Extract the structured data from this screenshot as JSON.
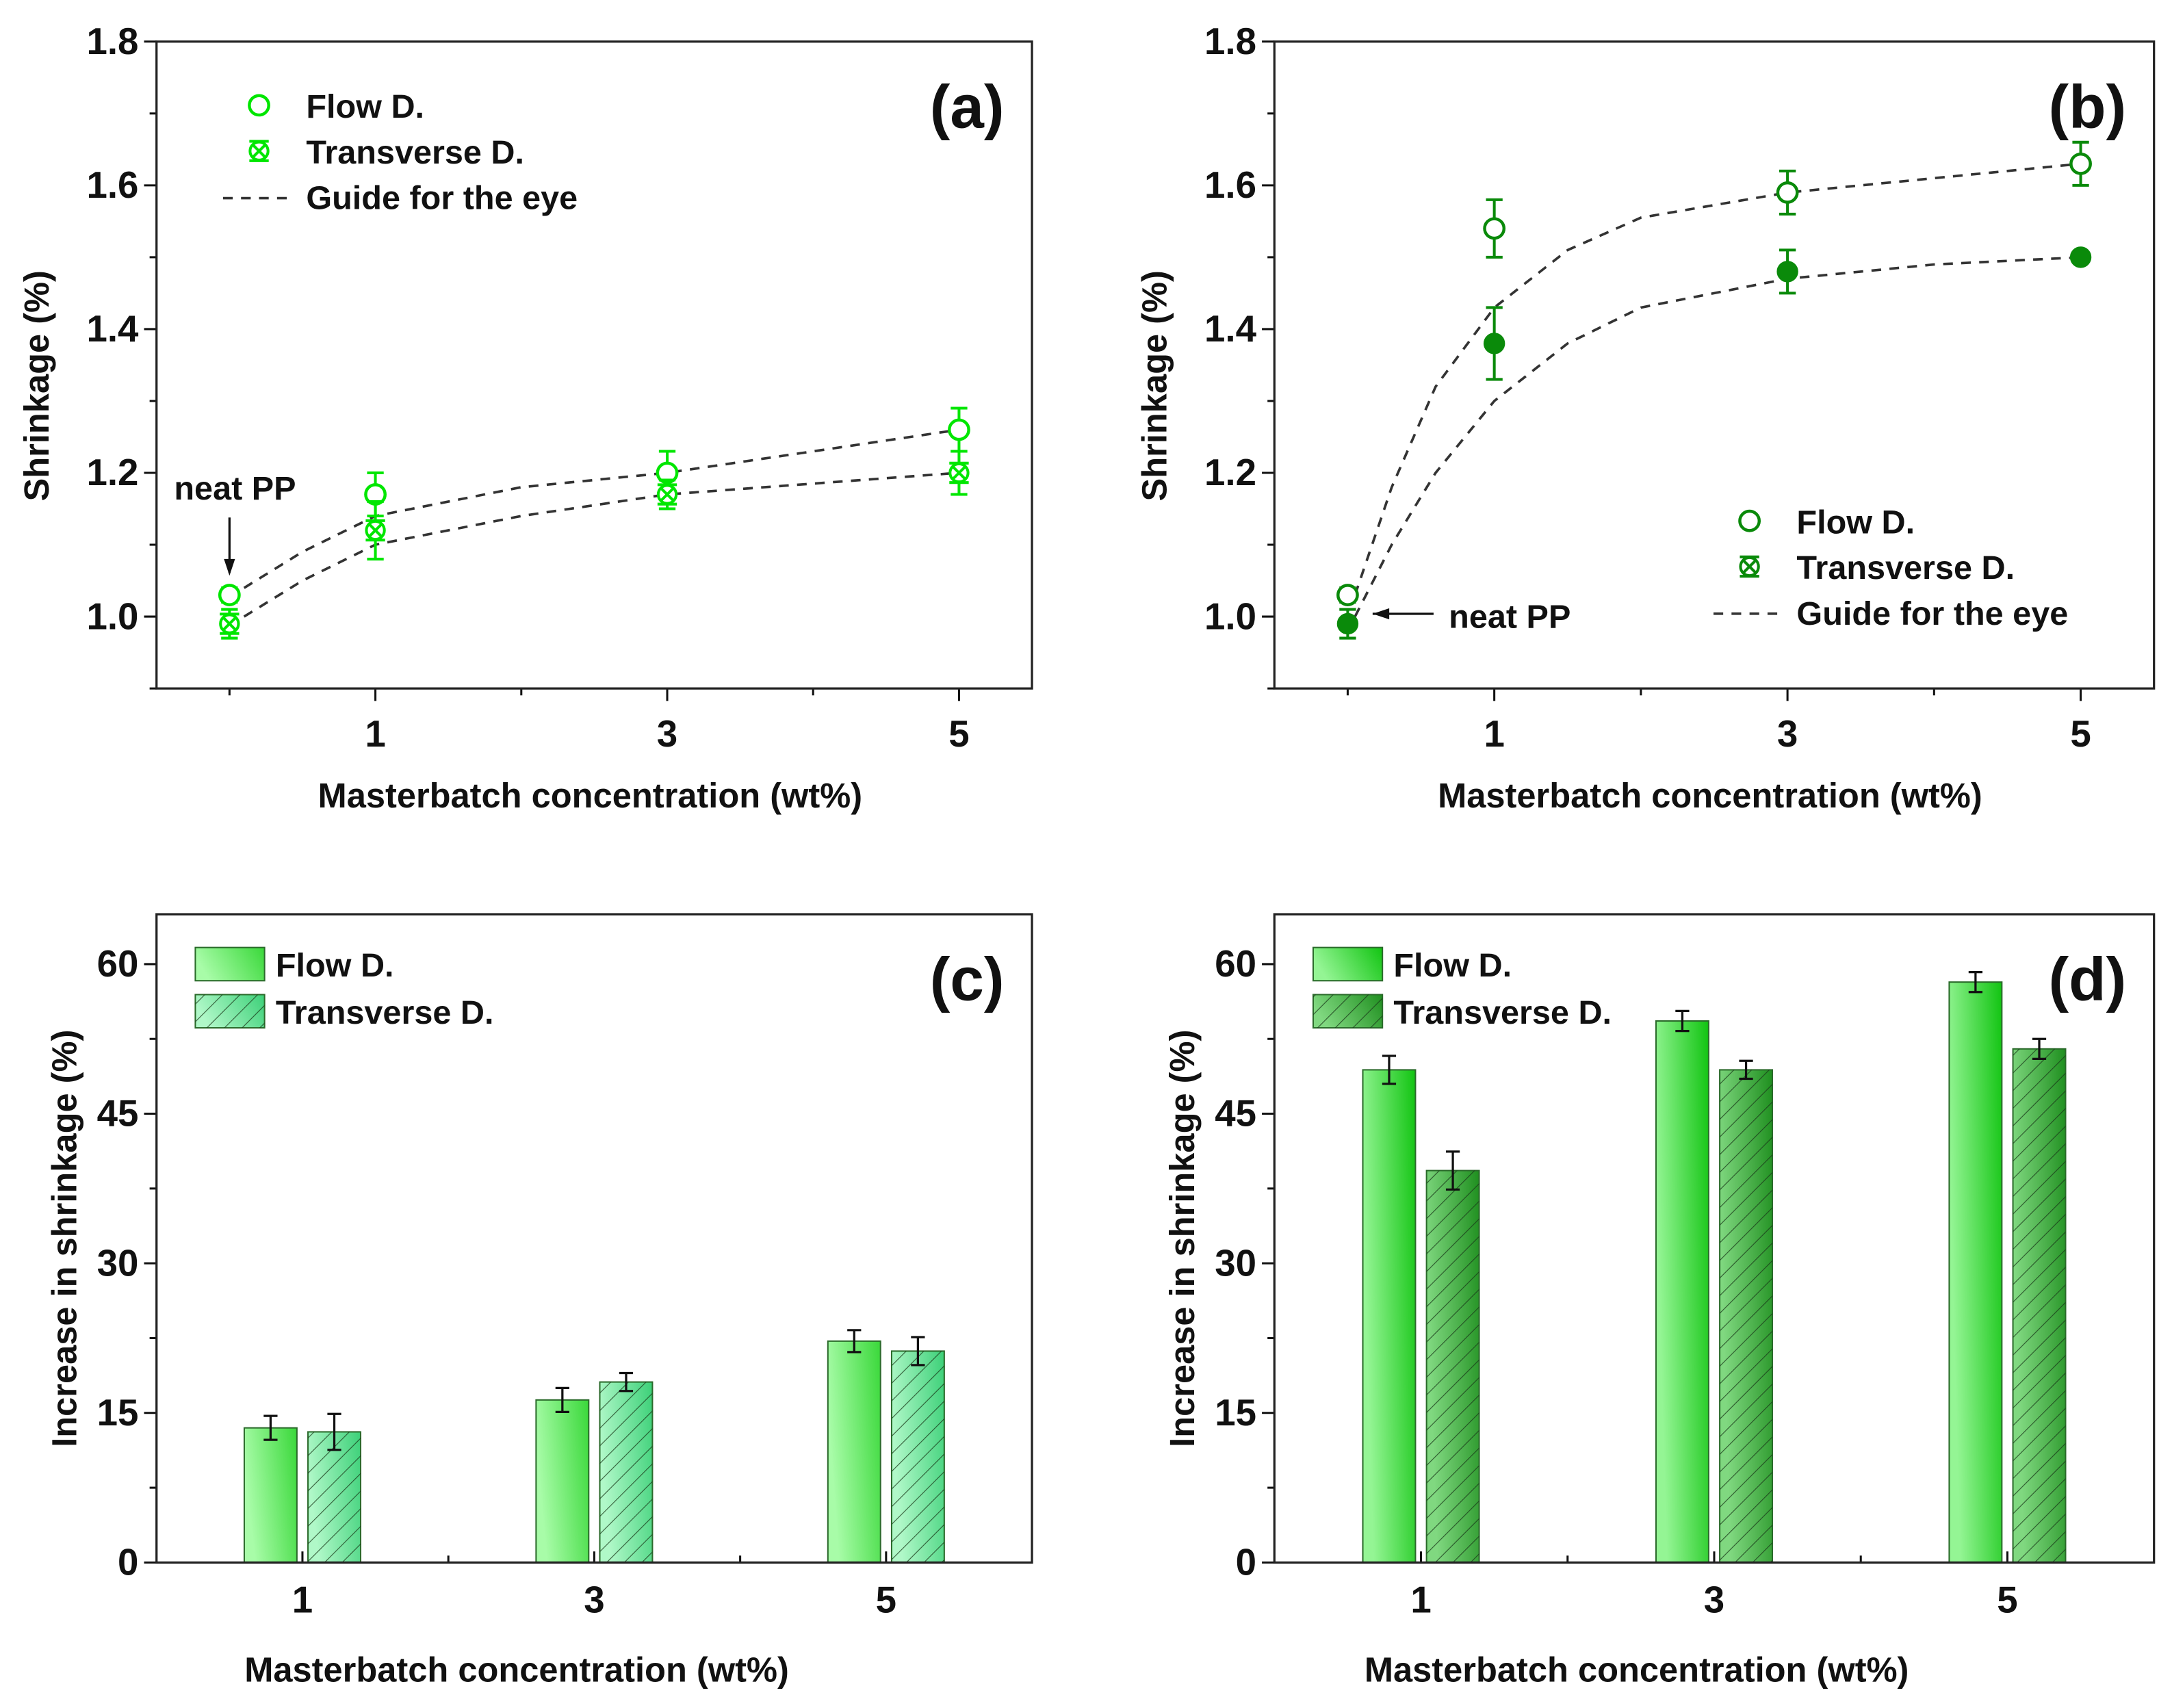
{
  "chart_data": [
    {
      "type": "scatter",
      "panel_label": "(a)",
      "xlabel": "Masterbatch concentration (wt%)",
      "ylabel": "Shrinkage (%)",
      "xlim": [
        -0.5,
        5.5
      ],
      "ylim": [
        0.9,
        1.8
      ],
      "xticks": [
        1,
        3,
        5
      ],
      "xtick_labels": [
        "1",
        "3",
        "5"
      ],
      "xminor": [
        0,
        2,
        4
      ],
      "yticks": [
        1.0,
        1.2,
        1.4,
        1.6,
        1.8
      ],
      "ytick_labels": [
        "1.0",
        "1.2",
        "1.4",
        "1.6",
        "1.8"
      ],
      "color": "#00e600",
      "legend_position": "top-left",
      "series": [
        {
          "name": "Flow D.",
          "marker": "open-circle",
          "x": [
            0,
            1,
            3,
            5
          ],
          "y": [
            1.03,
            1.17,
            1.2,
            1.26
          ],
          "err": [
            0.01,
            0.03,
            0.03,
            0.03
          ]
        },
        {
          "name": "Transverse D.",
          "marker": "crossed-circle",
          "x": [
            0,
            1,
            3,
            5
          ],
          "y": [
            0.99,
            1.12,
            1.17,
            1.2
          ],
          "err": [
            0.02,
            0.04,
            0.02,
            0.03
          ]
        }
      ],
      "guide": {
        "name": "Guide for the eye",
        "curves": [
          {
            "x": [
              0.1,
              0.5,
              1,
              2,
              3,
              4,
              5
            ],
            "y": [
              1.04,
              1.09,
              1.14,
              1.18,
              1.2,
              1.23,
              1.26
            ]
          },
          {
            "x": [
              0.1,
              0.5,
              1,
              2,
              3,
              4,
              5
            ],
            "y": [
              1.0,
              1.05,
              1.1,
              1.14,
              1.17,
              1.185,
              1.2
            ]
          }
        ]
      },
      "annotation": {
        "text": "neat PP",
        "x": 0,
        "y": 1.03,
        "arrow": "down"
      }
    },
    {
      "type": "scatter",
      "panel_label": "(b)",
      "xlabel": "Masterbatch concentration (wt%)",
      "ylabel": "Shrinkage (%)",
      "xlim": [
        -0.5,
        5.5
      ],
      "ylim": [
        0.9,
        1.8
      ],
      "xticks": [
        1,
        3,
        5
      ],
      "xtick_labels": [
        "1",
        "3",
        "5"
      ],
      "xminor": [
        0,
        2,
        4
      ],
      "yticks": [
        1.0,
        1.2,
        1.4,
        1.6,
        1.8
      ],
      "ytick_labels": [
        "1.0",
        "1.2",
        "1.4",
        "1.6",
        "1.8"
      ],
      "color": "#0a8a0a",
      "legend_position": "bottom-right",
      "series": [
        {
          "name": "Flow D.",
          "marker": "open-circle",
          "x": [
            0,
            1,
            3,
            5
          ],
          "y": [
            1.03,
            1.54,
            1.59,
            1.63
          ],
          "err": [
            0.01,
            0.04,
            0.03,
            0.03
          ]
        },
        {
          "name": "Transverse D.",
          "marker": "filled-circle",
          "x": [
            0,
            1,
            3,
            5
          ],
          "y": [
            0.99,
            1.38,
            1.48,
            1.5
          ],
          "err": [
            0.02,
            0.05,
            0.03,
            0.005
          ]
        }
      ],
      "guide": {
        "name": "Guide for the eye",
        "curves": [
          {
            "x": [
              0.05,
              0.3,
              0.6,
              1,
              1.5,
              2,
              3,
              4,
              5
            ],
            "y": [
              1.03,
              1.18,
              1.32,
              1.43,
              1.51,
              1.555,
              1.59,
              1.61,
              1.63
            ]
          },
          {
            "x": [
              0.05,
              0.3,
              0.6,
              1,
              1.5,
              2,
              3,
              4,
              5
            ],
            "y": [
              1.0,
              1.1,
              1.2,
              1.3,
              1.38,
              1.43,
              1.47,
              1.49,
              1.5
            ]
          }
        ]
      },
      "annotation": {
        "text": "neat PP",
        "x": 0,
        "y": 1.0,
        "arrow": "left"
      }
    },
    {
      "type": "bar",
      "panel_label": "(c)",
      "xlabel": "Masterbatch concentration (wt%)",
      "ylabel": "Increase in shrinkage (%)",
      "categories": [
        "1",
        "3",
        "5"
      ],
      "ylim": [
        0,
        65
      ],
      "yticks": [
        0,
        15,
        30,
        45,
        60
      ],
      "ytick_labels": [
        "0",
        "15",
        "30",
        "45",
        "60"
      ],
      "legend_position": "top-left",
      "series": [
        {
          "name": "Flow D.",
          "pattern": "solid",
          "values": [
            13.5,
            16.3,
            22.2
          ],
          "err": [
            1.2,
            1.2,
            1.1
          ],
          "colors": [
            "#a8fca8",
            "#3ad83a"
          ]
        },
        {
          "name": "Transverse D.",
          "pattern": "hatched",
          "values": [
            13.1,
            18.1,
            21.2
          ],
          "err": [
            1.8,
            0.9,
            1.4
          ],
          "colors": [
            "#b0f8c8",
            "#3cd078"
          ]
        }
      ]
    },
    {
      "type": "bar",
      "panel_label": "(d)",
      "xlabel": "Masterbatch concentration (wt%)",
      "ylabel": "Increase in shrinkage (%)",
      "categories": [
        "1",
        "3",
        "5"
      ],
      "ylim": [
        0,
        65
      ],
      "yticks": [
        0,
        15,
        30,
        45,
        60
      ],
      "ytick_labels": [
        "0",
        "15",
        "30",
        "45",
        "60"
      ],
      "legend_position": "top-left",
      "series": [
        {
          "name": "Flow D.",
          "pattern": "solid",
          "values": [
            49.4,
            54.3,
            58.2
          ],
          "err": [
            1.4,
            1.0,
            1.0
          ],
          "colors": [
            "#94f594",
            "#12c412"
          ]
        },
        {
          "name": "Transverse D.",
          "pattern": "hatched",
          "values": [
            39.3,
            49.4,
            51.5
          ],
          "err": [
            1.9,
            0.9,
            1.0
          ],
          "colors": [
            "#80d880",
            "#1f8f1f"
          ]
        }
      ]
    }
  ]
}
